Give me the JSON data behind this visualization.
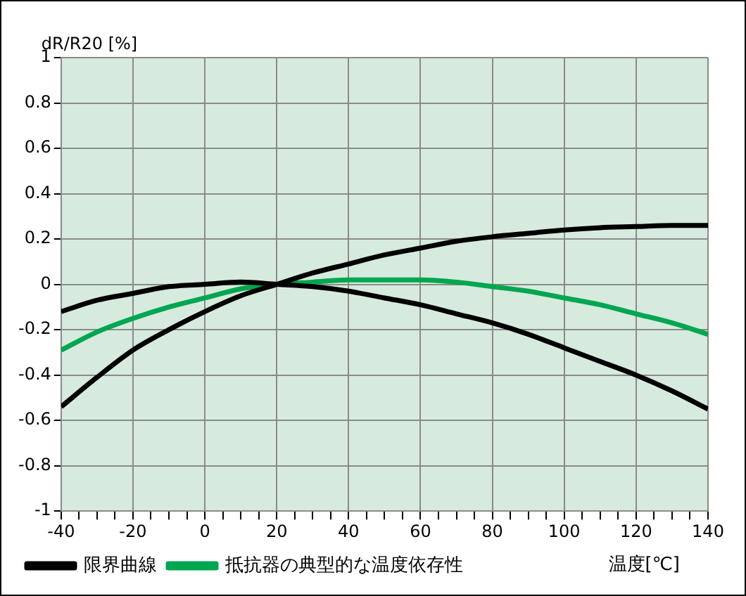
{
  "chart_data": {
    "type": "line",
    "xlabel": "温度[℃]",
    "ylabel": "dR/R20 [%]",
    "xlim": [
      -40,
      140
    ],
    "xticks": [
      -40,
      {
        "value": -35,
        "label": null
      },
      {
        "value": -30,
        "label": null
      },
      {
        "value": -25,
        "label": null
      },
      -20,
      {
        "value": -15,
        "label": null
      },
      {
        "value": -10,
        "label": null
      },
      {
        "value": -5,
        "label": null
      },
      0,
      {
        "value": 5,
        "label": null
      },
      {
        "value": 10,
        "label": null
      },
      {
        "value": 15,
        "label": null
      },
      20,
      {
        "value": 25,
        "label": null
      },
      {
        "value": 30,
        "label": null
      },
      {
        "value": 35,
        "label": null
      },
      40,
      {
        "value": 45,
        "label": null
      },
      {
        "value": 50,
        "label": null
      },
      {
        "value": 55,
        "label": null
      },
      60,
      {
        "value": 65,
        "label": null
      },
      {
        "value": 70,
        "label": null
      },
      {
        "value": 75,
        "label": null
      },
      80,
      {
        "value": 85,
        "label": null
      },
      {
        "value": 90,
        "label": null
      },
      {
        "value": 95,
        "label": null
      },
      100,
      {
        "value": 105,
        "label": null
      },
      {
        "value": 110,
        "label": null
      },
      {
        "value": 115,
        "label": null
      },
      120,
      {
        "value": 125,
        "label": null
      },
      {
        "value": 130,
        "label": null
      },
      {
        "value": 135,
        "label": null
      },
      140
    ],
    "ylim": [
      -1,
      1
    ],
    "yticks": [
      -1,
      -0.8,
      -0.6,
      -0.4,
      -0.2,
      0,
      0.2,
      0.4,
      0.6,
      0.8,
      1
    ],
    "x": [
      -40,
      -30,
      -20,
      -10,
      0,
      10,
      20,
      30,
      40,
      50,
      60,
      70,
      80,
      90,
      100,
      110,
      120,
      130,
      140
    ],
    "series": [
      {
        "name": "限界曲線",
        "color": "#000000",
        "values": [
          -0.54,
          -0.41,
          -0.29,
          -0.2,
          -0.12,
          -0.05,
          0,
          0.05,
          0.09,
          0.13,
          0.16,
          0.19,
          0.21,
          0.225,
          0.24,
          0.25,
          0.255,
          0.26,
          0.26
        ]
      },
      {
        "color": "#000000",
        "values": [
          -0.12,
          -0.07,
          -0.04,
          -0.01,
          0,
          0.01,
          0,
          -0.01,
          -0.03,
          -0.06,
          -0.09,
          -0.13,
          -0.17,
          -0.22,
          -0.28,
          -0.34,
          -0.4,
          -0.47,
          -0.55
        ]
      },
      {
        "name": "抵抗器の典型的な温度依存性",
        "color": "#00a650",
        "values": [
          -0.29,
          -0.21,
          -0.15,
          -0.1,
          -0.06,
          -0.02,
          0,
          0.01,
          0.02,
          0.02,
          0.02,
          0.01,
          -0.01,
          -0.03,
          -0.06,
          -0.09,
          -0.13,
          -0.17,
          -0.22
        ]
      }
    ],
    "grid": true,
    "legend": "bottom left",
    "marker": "none",
    "line_style": "solid"
  }
}
